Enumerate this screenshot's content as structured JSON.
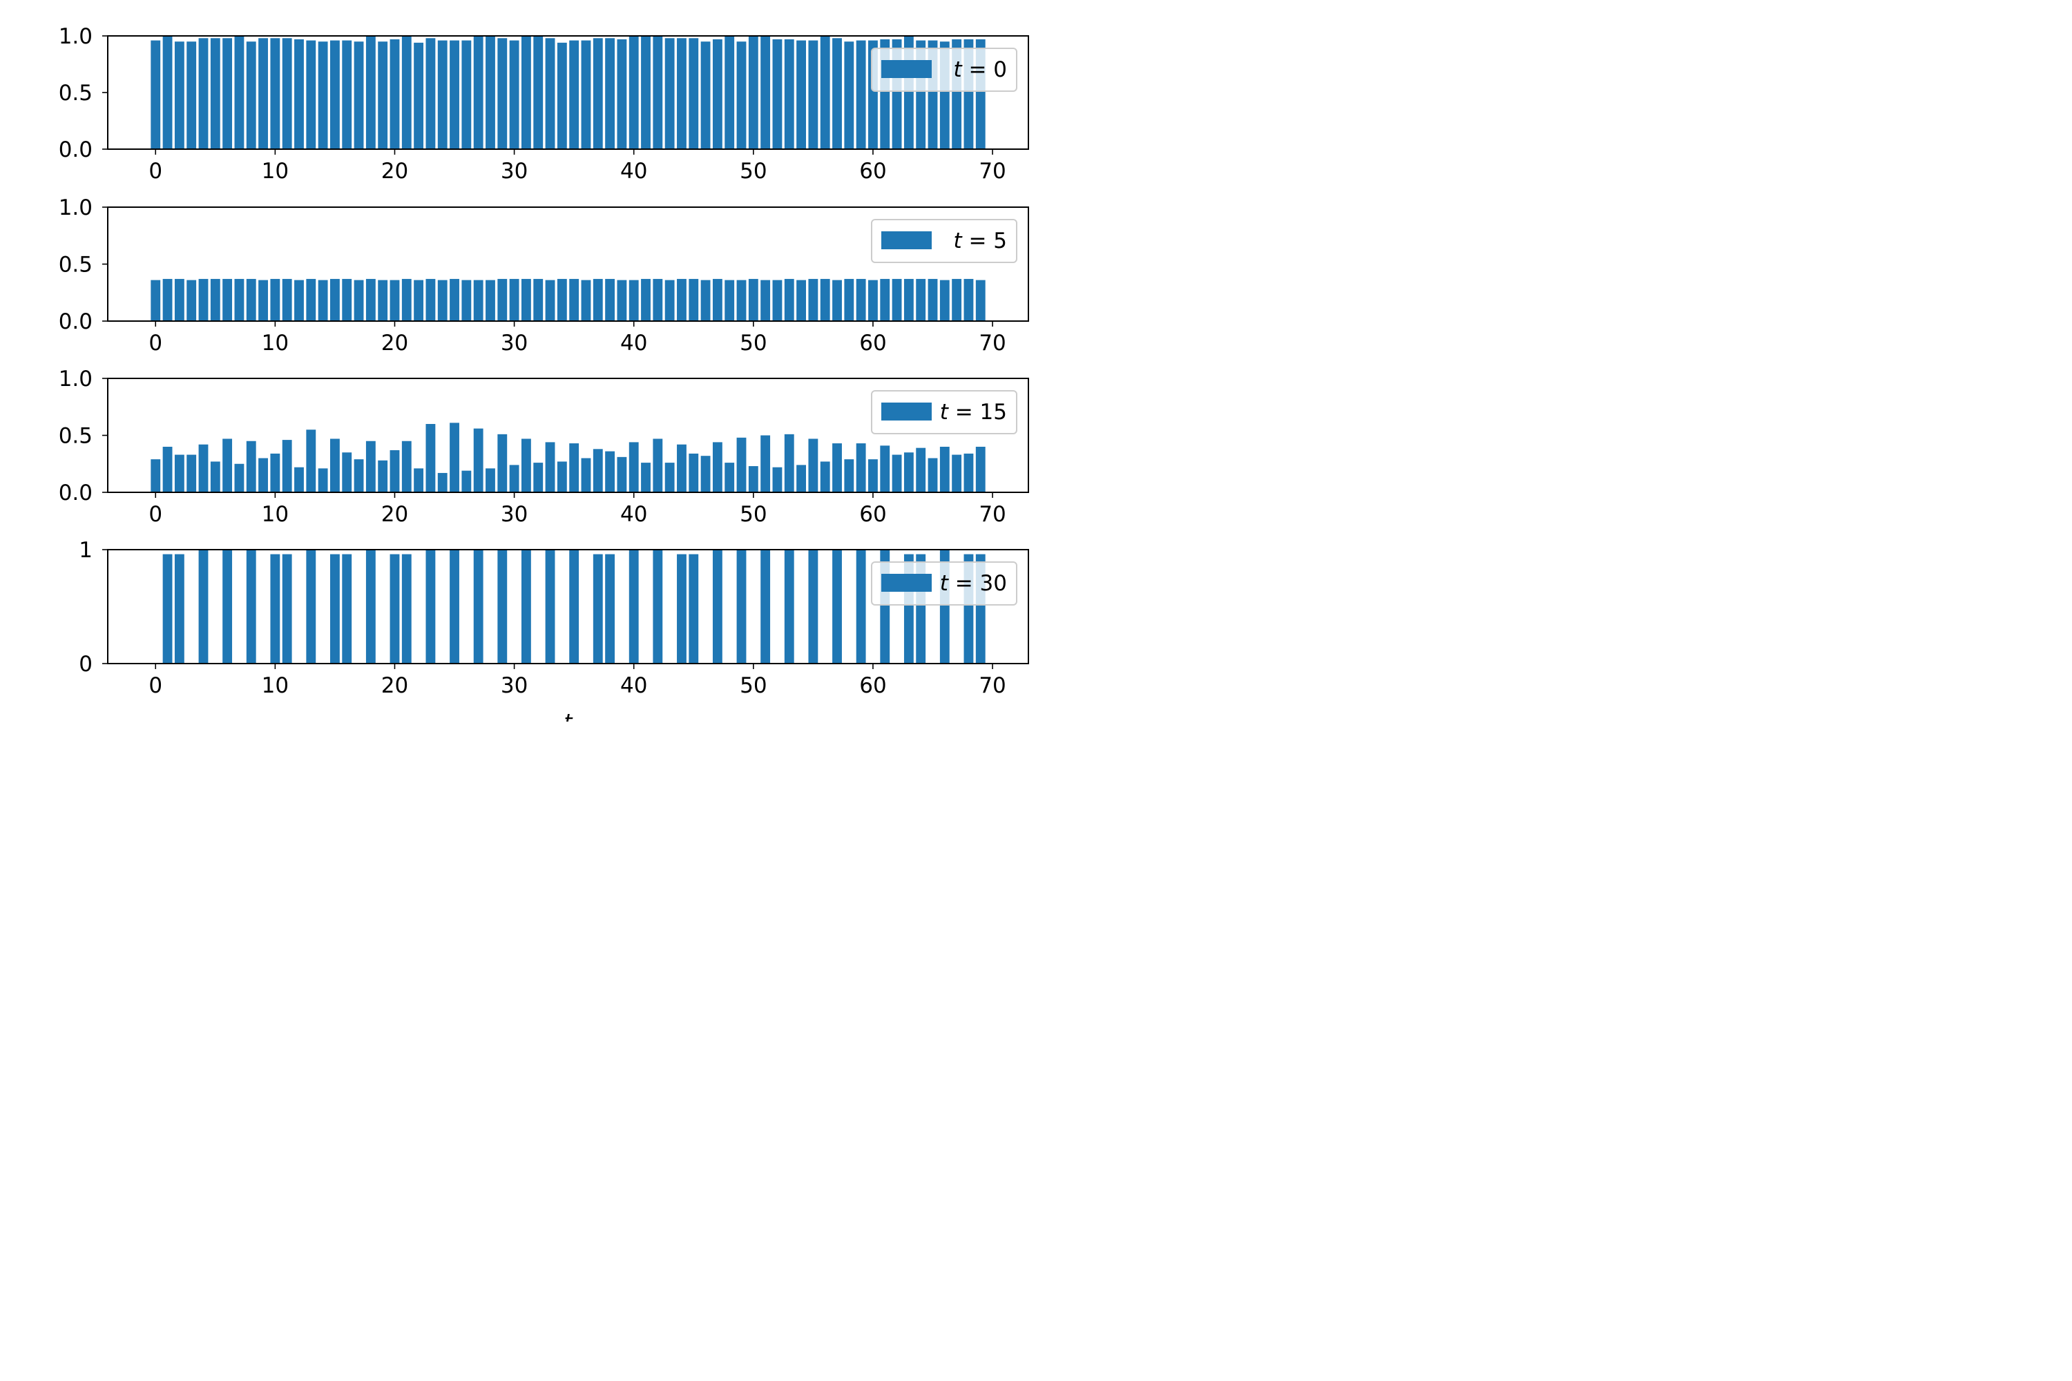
{
  "chart_data": [
    {
      "type": "bar",
      "legend": "t = 0",
      "legend_var": "t",
      "legend_value": "0",
      "legend_position": "upper right",
      "xlim": [
        -4,
        73
      ],
      "ylim": [
        0,
        1.0
      ],
      "xticks": [
        "0",
        "10",
        "20",
        "30",
        "40",
        "50",
        "60",
        "70"
      ],
      "yticks": [
        "0.0",
        "0.5",
        "1.0"
      ],
      "color": "#1f77b4",
      "x": [
        0,
        1,
        2,
        3,
        4,
        5,
        6,
        7,
        8,
        9,
        10,
        11,
        12,
        13,
        14,
        15,
        16,
        17,
        18,
        19,
        20,
        21,
        22,
        23,
        24,
        25,
        26,
        27,
        28,
        29,
        30,
        31,
        32,
        33,
        34,
        35,
        36,
        37,
        38,
        39,
        40,
        41,
        42,
        43,
        44,
        45,
        46,
        47,
        48,
        49,
        50,
        51,
        52,
        53,
        54,
        55,
        56,
        57,
        58,
        59,
        60,
        61,
        62,
        63,
        64,
        65,
        66,
        67,
        68,
        69
      ],
      "values": [
        0.96,
        1.0,
        0.95,
        0.95,
        0.98,
        0.98,
        0.98,
        1.0,
        0.95,
        0.98,
        0.98,
        0.98,
        0.97,
        0.96,
        0.95,
        0.96,
        0.96,
        0.95,
        1.0,
        0.95,
        0.97,
        1.0,
        0.94,
        0.98,
        0.96,
        0.96,
        0.96,
        1.0,
        1.0,
        0.98,
        0.96,
        1.0,
        1.0,
        0.98,
        0.94,
        0.96,
        0.96,
        0.98,
        0.98,
        0.97,
        1.0,
        1.0,
        1.0,
        0.98,
        0.98,
        0.98,
        0.95,
        0.97,
        1.0,
        0.95,
        1.0,
        1.0,
        0.97,
        0.97,
        0.96,
        0.96,
        1.0,
        0.98,
        0.95,
        0.96,
        0.96,
        0.97,
        0.97,
        1.0,
        0.96,
        0.96,
        0.95,
        0.97,
        0.97,
        0.97
      ]
    },
    {
      "type": "bar",
      "legend": "t = 5",
      "legend_var": "t",
      "legend_value": "5",
      "legend_position": "upper right",
      "xlim": [
        -4,
        73
      ],
      "ylim": [
        0,
        1.0
      ],
      "xticks": [
        "0",
        "10",
        "20",
        "30",
        "40",
        "50",
        "60",
        "70"
      ],
      "yticks": [
        "0.0",
        "0.5",
        "1.0"
      ],
      "color": "#1f77b4",
      "x": [
        0,
        1,
        2,
        3,
        4,
        5,
        6,
        7,
        8,
        9,
        10,
        11,
        12,
        13,
        14,
        15,
        16,
        17,
        18,
        19,
        20,
        21,
        22,
        23,
        24,
        25,
        26,
        27,
        28,
        29,
        30,
        31,
        32,
        33,
        34,
        35,
        36,
        37,
        38,
        39,
        40,
        41,
        42,
        43,
        44,
        45,
        46,
        47,
        48,
        49,
        50,
        51,
        52,
        53,
        54,
        55,
        56,
        57,
        58,
        59,
        60,
        61,
        62,
        63,
        64,
        65,
        66,
        67,
        68,
        69
      ],
      "values": [
        0.36,
        0.37,
        0.37,
        0.36,
        0.37,
        0.37,
        0.37,
        0.37,
        0.37,
        0.36,
        0.37,
        0.37,
        0.36,
        0.37,
        0.36,
        0.37,
        0.37,
        0.36,
        0.37,
        0.36,
        0.36,
        0.37,
        0.36,
        0.37,
        0.36,
        0.37,
        0.36,
        0.36,
        0.36,
        0.37,
        0.37,
        0.37,
        0.37,
        0.36,
        0.37,
        0.37,
        0.36,
        0.37,
        0.37,
        0.36,
        0.36,
        0.37,
        0.37,
        0.36,
        0.37,
        0.37,
        0.36,
        0.37,
        0.36,
        0.36,
        0.37,
        0.36,
        0.36,
        0.37,
        0.36,
        0.37,
        0.37,
        0.36,
        0.37,
        0.37,
        0.36,
        0.37,
        0.37,
        0.37,
        0.37,
        0.37,
        0.36,
        0.37,
        0.37,
        0.36
      ]
    },
    {
      "type": "bar",
      "legend": "t = 15",
      "legend_var": "t",
      "legend_value": "15",
      "legend_position": "upper right",
      "xlim": [
        -4,
        73
      ],
      "ylim": [
        0,
        1.0
      ],
      "xticks": [
        "0",
        "10",
        "20",
        "30",
        "40",
        "50",
        "60",
        "70"
      ],
      "yticks": [
        "0.0",
        "0.5",
        "1.0"
      ],
      "color": "#1f77b4",
      "x": [
        0,
        1,
        2,
        3,
        4,
        5,
        6,
        7,
        8,
        9,
        10,
        11,
        12,
        13,
        14,
        15,
        16,
        17,
        18,
        19,
        20,
        21,
        22,
        23,
        24,
        25,
        26,
        27,
        28,
        29,
        30,
        31,
        32,
        33,
        34,
        35,
        36,
        37,
        38,
        39,
        40,
        41,
        42,
        43,
        44,
        45,
        46,
        47,
        48,
        49,
        50,
        51,
        52,
        53,
        54,
        55,
        56,
        57,
        58,
        59,
        60,
        61,
        62,
        63,
        64,
        65,
        66,
        67,
        68,
        69
      ],
      "values": [
        0.29,
        0.4,
        0.33,
        0.33,
        0.42,
        0.27,
        0.47,
        0.25,
        0.45,
        0.3,
        0.34,
        0.46,
        0.22,
        0.55,
        0.21,
        0.47,
        0.35,
        0.29,
        0.45,
        0.28,
        0.37,
        0.45,
        0.21,
        0.6,
        0.17,
        0.61,
        0.19,
        0.56,
        0.21,
        0.51,
        0.24,
        0.47,
        0.26,
        0.44,
        0.27,
        0.43,
        0.3,
        0.38,
        0.36,
        0.31,
        0.44,
        0.26,
        0.47,
        0.26,
        0.42,
        0.34,
        0.32,
        0.44,
        0.26,
        0.48,
        0.23,
        0.5,
        0.22,
        0.51,
        0.24,
        0.47,
        0.27,
        0.43,
        0.29,
        0.43,
        0.29,
        0.41,
        0.33,
        0.35,
        0.39,
        0.3,
        0.4,
        0.33,
        0.34,
        0.4
      ]
    },
    {
      "type": "bar",
      "legend": "t = 30",
      "legend_var": "t",
      "legend_value": "30",
      "legend_position": "upper right",
      "xlim": [
        -4,
        73
      ],
      "ylim": [
        0,
        1.0
      ],
      "xticks": [
        "0",
        "10",
        "20",
        "30",
        "40",
        "50",
        "60",
        "70"
      ],
      "yticks": [
        "0",
        "1"
      ],
      "xlabel": "t",
      "color": "#1f77b4",
      "x": [
        0,
        1,
        2,
        3,
        4,
        5,
        6,
        7,
        8,
        9,
        10,
        11,
        12,
        13,
        14,
        15,
        16,
        17,
        18,
        19,
        20,
        21,
        22,
        23,
        24,
        25,
        26,
        27,
        28,
        29,
        30,
        31,
        32,
        33,
        34,
        35,
        36,
        37,
        38,
        39,
        40,
        41,
        42,
        43,
        44,
        45,
        46,
        47,
        48,
        49,
        50,
        51,
        52,
        53,
        54,
        55,
        56,
        57,
        58,
        59,
        60,
        61,
        62,
        63,
        64,
        65,
        66,
        67,
        68,
        69
      ],
      "values": [
        0,
        0.96,
        0.96,
        0,
        1.0,
        0,
        1.0,
        0,
        1.0,
        0,
        0.96,
        0.96,
        0,
        1.0,
        0,
        0.96,
        0.96,
        0,
        1.0,
        0,
        0.96,
        0.96,
        0,
        1.0,
        0,
        1.0,
        0,
        1.0,
        0,
        1.0,
        0,
        1.0,
        0,
        1.0,
        0,
        1.0,
        0,
        0.96,
        0.96,
        0,
        1.0,
        0,
        1.0,
        0,
        0.96,
        0.96,
        0,
        1.0,
        0,
        1.0,
        0,
        1.0,
        0,
        1.0,
        0,
        1.0,
        0,
        1.0,
        0,
        1.0,
        0,
        1.0,
        0,
        0.96,
        0.96,
        0,
        1.0,
        0,
        0.96,
        0.96
      ]
    }
  ]
}
